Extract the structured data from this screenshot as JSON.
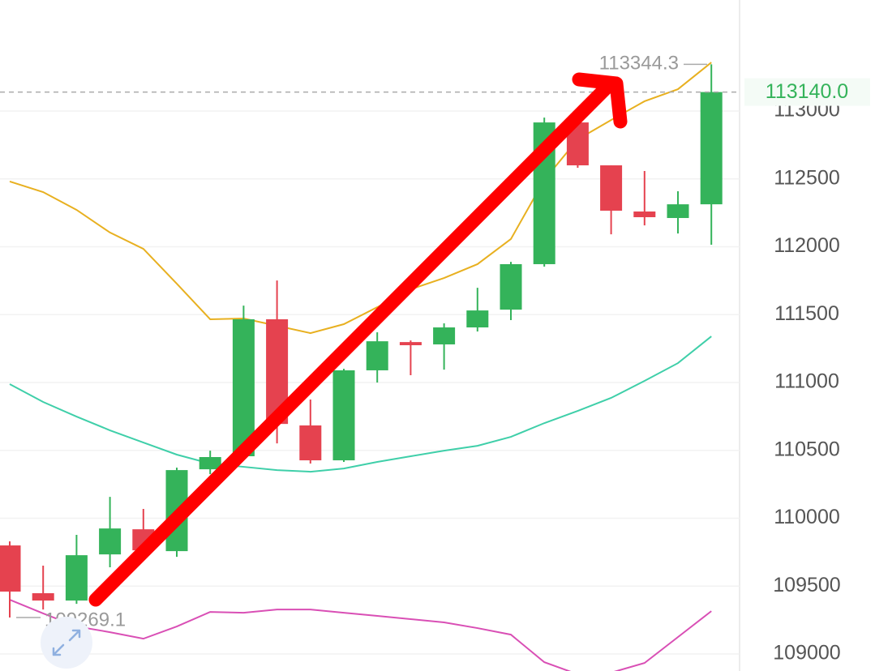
{
  "chart_data": {
    "type": "candlestick",
    "open": [
      109800,
      109448,
      109394,
      109734,
      109919,
      109758,
      110361,
      110457,
      111466,
      110684,
      110427,
      111090,
      111298,
      111281,
      111406,
      111537,
      111872,
      112916,
      112600,
      112260,
      112212,
      112313
    ],
    "high": [
      109830,
      109651,
      109878,
      110158,
      110069,
      110373,
      110498,
      111567,
      111752,
      110875,
      111101,
      111370,
      111310,
      111436,
      111698,
      111889,
      112952,
      112940,
      112600,
      112558,
      112409,
      113344.3
    ],
    "low": [
      109269.1,
      109328,
      109370,
      109639,
      109698,
      109716,
      110325,
      110439,
      110552,
      110403,
      110415,
      111000,
      111054,
      111095,
      111376,
      111460,
      111854,
      112582,
      112092,
      112158,
      112098,
      112015
    ],
    "close": [
      109460,
      109394,
      109728,
      109925,
      109764,
      110355,
      110451,
      111466,
      110695,
      110427,
      111090,
      111304,
      111275,
      111406,
      111531,
      111872,
      112916,
      112600,
      112266,
      112218,
      112313,
      113140
    ],
    "up_color": "#34b35a",
    "down_color": "#e5424f",
    "lines": [
      {
        "color": "#e8b020",
        "values": [
          112481,
          112403,
          112272,
          112105,
          111985,
          111728,
          111466,
          111472,
          111418,
          111364,
          111430,
          111555,
          111687,
          111770,
          111872,
          112057,
          112493,
          112791,
          112934,
          113072,
          113161,
          113358
        ]
      },
      {
        "color": "#3fcfa9",
        "values": [
          110988,
          110857,
          110749,
          110648,
          110558,
          110469,
          110403,
          110379,
          110355,
          110343,
          110367,
          110415,
          110457,
          110498,
          110534,
          110600,
          110701,
          110791,
          110887,
          111012,
          111143,
          111340
        ]
      },
      {
        "color": "#d94fb5",
        "values": [
          109400,
          109299,
          109203,
          109161,
          109113,
          109203,
          109310,
          109304,
          109328,
          109328,
          109304,
          109281,
          109257,
          109233,
          109191,
          109143,
          108940,
          108851,
          108863,
          108934,
          109125,
          109316
        ]
      }
    ],
    "ylim": [
      108875,
      113818
    ],
    "yticks": [
      109000,
      109500,
      110000,
      110500,
      111000,
      111500,
      112000,
      112500,
      113000
    ],
    "grid": true,
    "max_label": 113344.3,
    "min_label": 109269.1,
    "last_price": {
      "value": 113140,
      "label": "113140.0"
    }
  }
}
